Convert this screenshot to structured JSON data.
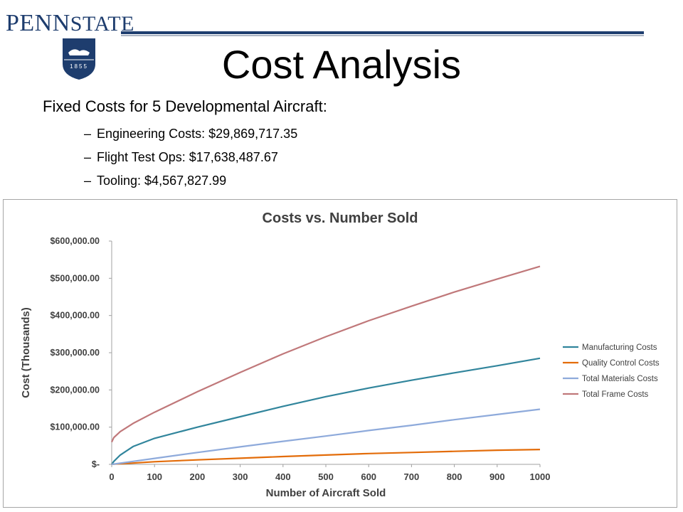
{
  "header": {
    "logo_part1": "PENN",
    "logo_part2": "STATE",
    "seal_year": "1855",
    "title": "Cost Analysis"
  },
  "intro": "Fixed Costs for 5 Developmental Aircraft:",
  "bullets": [
    {
      "dash": "–",
      "text": "Engineering  Costs: $29,869,717.35"
    },
    {
      "dash": "–",
      "text": "Flight Test Ops:  $17,638,487.67"
    },
    {
      "dash": "–",
      "text": "Tooling: $4,567,827.99"
    }
  ],
  "colors": {
    "Manufacturing Costs": "#31859c",
    "Quality Control Costs": "#e36c09",
    "Total Materials Costs": "#8eaadb",
    "Total Frame Costs": "#c0787a",
    "brand": "#1e3d6e"
  },
  "chart_data": {
    "type": "line",
    "title": "Costs vs. Number Sold",
    "xlabel": "Number of Aircraft Sold",
    "ylabel": "Cost (Thousands)",
    "xlim": [
      0,
      1000
    ],
    "ylim": [
      0,
      600000
    ],
    "x_ticks": [
      "0",
      "100",
      "200",
      "300",
      "400",
      "500",
      "600",
      "700",
      "800",
      "900",
      "1000"
    ],
    "y_ticks": [
      "$-",
      "$100,000.00",
      "$200,000.00",
      "$300,000.00",
      "$400,000.00",
      "$500,000.00",
      "$600,000.00"
    ],
    "grid": false,
    "legend": "right",
    "x": [
      0,
      5,
      20,
      50,
      100,
      200,
      300,
      400,
      500,
      600,
      700,
      800,
      900,
      1000
    ],
    "series": [
      {
        "name": "Manufacturing Costs",
        "values": [
          0,
          8000,
          25000,
          48000,
          70000,
          100000,
          128000,
          156000,
          182000,
          205000,
          226000,
          246000,
          265000,
          285000
        ]
      },
      {
        "name": "Quality Control Costs",
        "values": [
          0,
          500,
          1500,
          3500,
          7000,
          12000,
          16500,
          21000,
          25000,
          29000,
          32000,
          35000,
          38000,
          40000
        ]
      },
      {
        "name": "Total Materials Costs",
        "values": [
          0,
          800,
          3000,
          8000,
          16000,
          32000,
          47000,
          62000,
          76000,
          91000,
          105000,
          120000,
          134000,
          148000
        ]
      },
      {
        "name": "Total Frame Costs",
        "values": [
          60000,
          72000,
          88000,
          110000,
          140000,
          195000,
          247000,
          297000,
          343000,
          386000,
          425000,
          463000,
          498000,
          532000
        ]
      }
    ]
  }
}
